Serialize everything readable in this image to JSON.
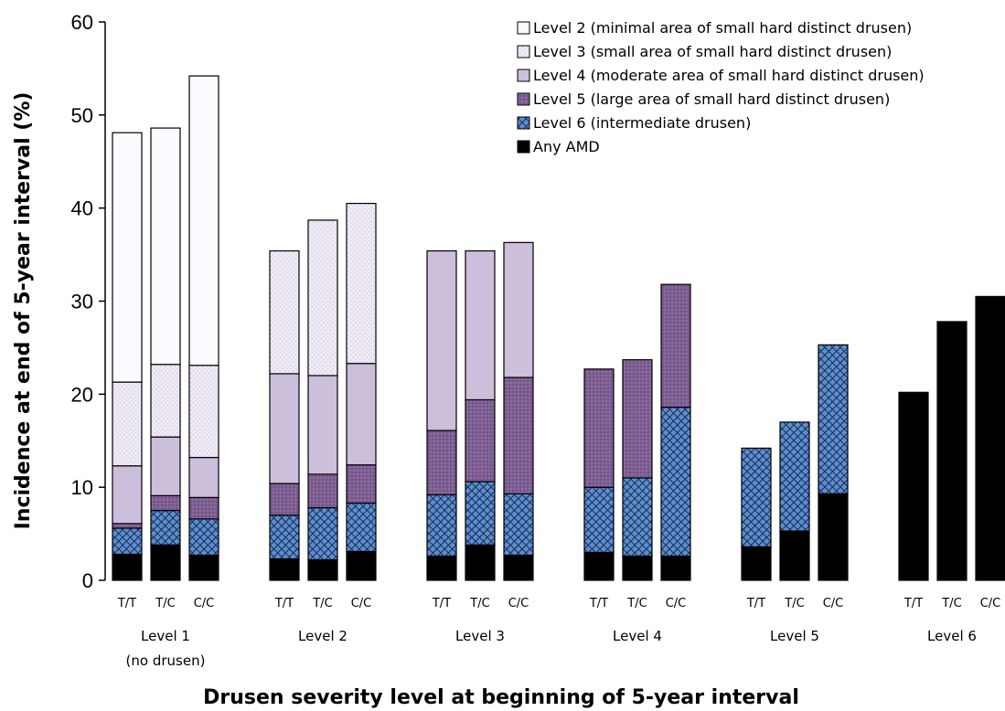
{
  "chart_data": {
    "type": "bar",
    "stacked": true,
    "title": "",
    "xlabel": "Drusen severity level at beginning of 5-year interval",
    "ylabel": "Incidence at end of 5-year interval (%)",
    "ylim": [
      0,
      60
    ],
    "yticks": [
      "0",
      "10",
      "20",
      "30",
      "40",
      "50",
      "60"
    ],
    "grid": false,
    "legend_position": "top-right",
    "groups": [
      {
        "label": "Level 1",
        "sublabel": "(no drusen)"
      },
      {
        "label": "Level 2",
        "sublabel": ""
      },
      {
        "label": "Level 3",
        "sublabel": ""
      },
      {
        "label": "Level 4",
        "sublabel": ""
      },
      {
        "label": "Level 5",
        "sublabel": ""
      },
      {
        "label": "Level 6",
        "sublabel": ""
      }
    ],
    "bar_labels": [
      "T/T",
      "T/C",
      "C/C"
    ],
    "series": [
      {
        "name": "Any AMD",
        "color": "#000000",
        "pattern": "solid",
        "values": [
          [
            2.8,
            3.8,
            2.7
          ],
          [
            2.3,
            2.2,
            3.1
          ],
          [
            2.6,
            3.8,
            2.7
          ],
          [
            3.0,
            2.6,
            2.6
          ],
          [
            3.6,
            5.3,
            9.3
          ],
          [
            20.2,
            27.8,
            30.5
          ]
        ]
      },
      {
        "name": "Level 6 (intermediate drusen)",
        "color": "#4a7fc1",
        "pattern": "hatched-blue",
        "values": [
          [
            2.8,
            3.7,
            3.9
          ],
          [
            4.7,
            5.6,
            5.2
          ],
          [
            6.6,
            6.8,
            6.6
          ],
          [
            7.0,
            8.4,
            16.0
          ],
          [
            10.6,
            11.7,
            16.0
          ],
          [
            0,
            0,
            0
          ]
        ]
      },
      {
        "name": "Level 5 (large area of small hard distinct drusen)",
        "color": "#7b5c91",
        "pattern": "dotted-purple",
        "values": [
          [
            0.5,
            1.6,
            2.3
          ],
          [
            3.4,
            3.6,
            4.1
          ],
          [
            6.9,
            8.8,
            12.5
          ],
          [
            12.7,
            12.7,
            13.2
          ],
          [
            0,
            0,
            0
          ],
          [
            0,
            0,
            0
          ]
        ]
      },
      {
        "name": "Level 4 (moderate area of small hard distinct drusen)",
        "color": "#c9bbd8",
        "pattern": "light-purple",
        "values": [
          [
            6.2,
            6.3,
            4.3
          ],
          [
            11.8,
            10.6,
            10.9
          ],
          [
            19.3,
            16.0,
            14.5
          ],
          [
            0,
            0,
            0
          ],
          [
            0,
            0,
            0
          ],
          [
            0,
            0,
            0
          ]
        ]
      },
      {
        "name": "Level 3 (small area of small hard distinct drusen)",
        "color": "#ece8f3",
        "pattern": "light-dots",
        "values": [
          [
            9.0,
            7.8,
            9.9
          ],
          [
            13.2,
            16.7,
            17.2
          ],
          [
            0,
            0,
            0
          ],
          [
            0,
            0,
            0
          ],
          [
            0,
            0,
            0
          ],
          [
            0,
            0,
            0
          ]
        ]
      },
      {
        "name": "Level 2 (minimal area of small hard distinct drusen)",
        "color": "#f8f7fb",
        "pattern": "white",
        "values": [
          [
            26.8,
            25.4,
            31.1
          ],
          [
            0,
            0,
            0
          ],
          [
            0,
            0,
            0
          ],
          [
            0,
            0,
            0
          ],
          [
            0,
            0,
            0
          ],
          [
            0,
            0,
            0
          ]
        ]
      }
    ]
  }
}
